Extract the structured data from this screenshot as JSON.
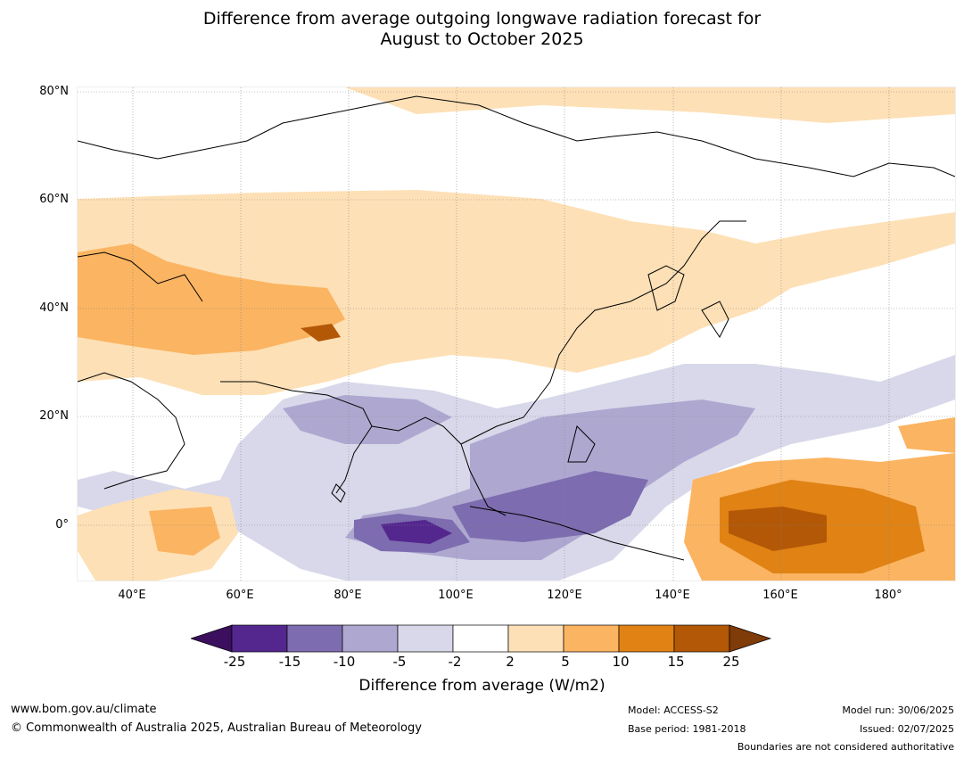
{
  "title": {
    "line1": "Difference from average outgoing longwave radiation forecast for",
    "line2": "August to October 2025"
  },
  "map": {
    "lat_labels": [
      "80°N",
      "60°N",
      "40°N",
      "20°N",
      "0°"
    ],
    "lon_labels": [
      "40°E",
      "60°E",
      "80°E",
      "100°E",
      "120°E",
      "140°E",
      "160°E",
      "180°"
    ]
  },
  "colorbar": {
    "ticks": [
      "-25",
      "-15",
      "-10",
      "-5",
      "-2",
      "2",
      "5",
      "10",
      "15",
      "25"
    ],
    "colors": [
      "#3b0f5e",
      "#54278f",
      "#7d6caf",
      "#aea8d0",
      "#d8d8ea",
      "#ffffff",
      "#fde0b6",
      "#fbb461",
      "#e08214",
      "#b35806",
      "#7f3b08"
    ],
    "label": "Difference from average (W/m2)"
  },
  "footer": {
    "website": "www.bom.gov.au/climate",
    "copyright": "© Commonwealth of Australia 2025, Australian Bureau of Meteorology",
    "model": "Model: ACCESS-S2",
    "base_period": "Base period: 1981-2018",
    "model_run": "Model run: 30/06/2025",
    "issued": "Issued: 02/07/2025",
    "disclaimer": "Boundaries are not considered authoritative"
  }
}
